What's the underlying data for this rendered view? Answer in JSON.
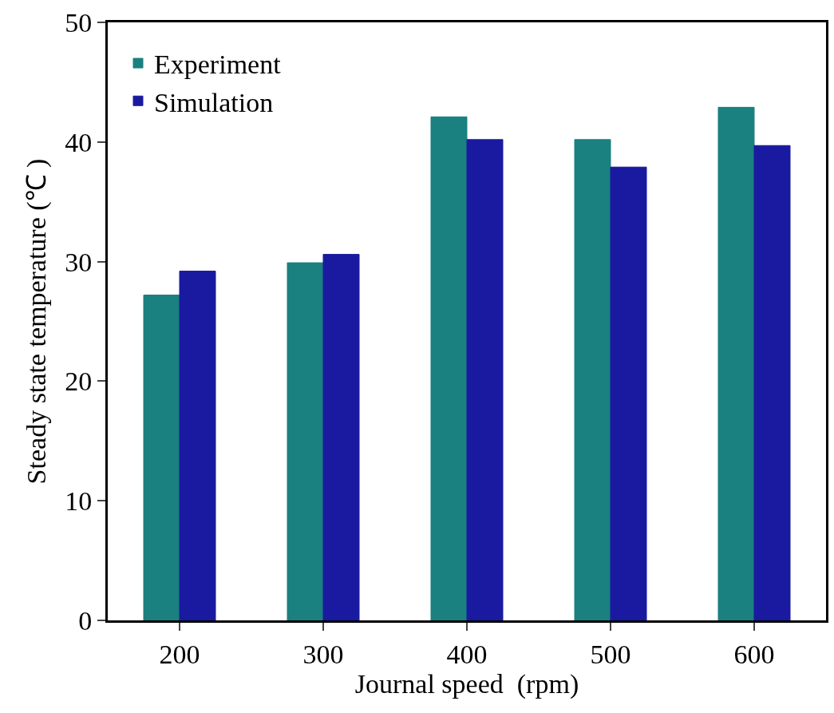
{
  "chart_data": {
    "type": "bar",
    "xlabel": "Journal speed  (rpm)",
    "ylabel": "Steady state temperature (℃ )",
    "categories": [
      "200",
      "300",
      "400",
      "500",
      "600"
    ],
    "series": [
      {
        "name": "Experiment",
        "color": "#1a8080",
        "values": [
          27.2,
          29.9,
          42.1,
          40.2,
          42.9
        ]
      },
      {
        "name": "Simulation",
        "color": "#1a1aa0",
        "values": [
          29.2,
          30.6,
          40.2,
          37.9,
          39.7
        ]
      }
    ],
    "ylim": [
      0,
      50
    ],
    "yticks": [
      0,
      10,
      20,
      30,
      40,
      50
    ],
    "grid": false,
    "legend": "top left"
  }
}
